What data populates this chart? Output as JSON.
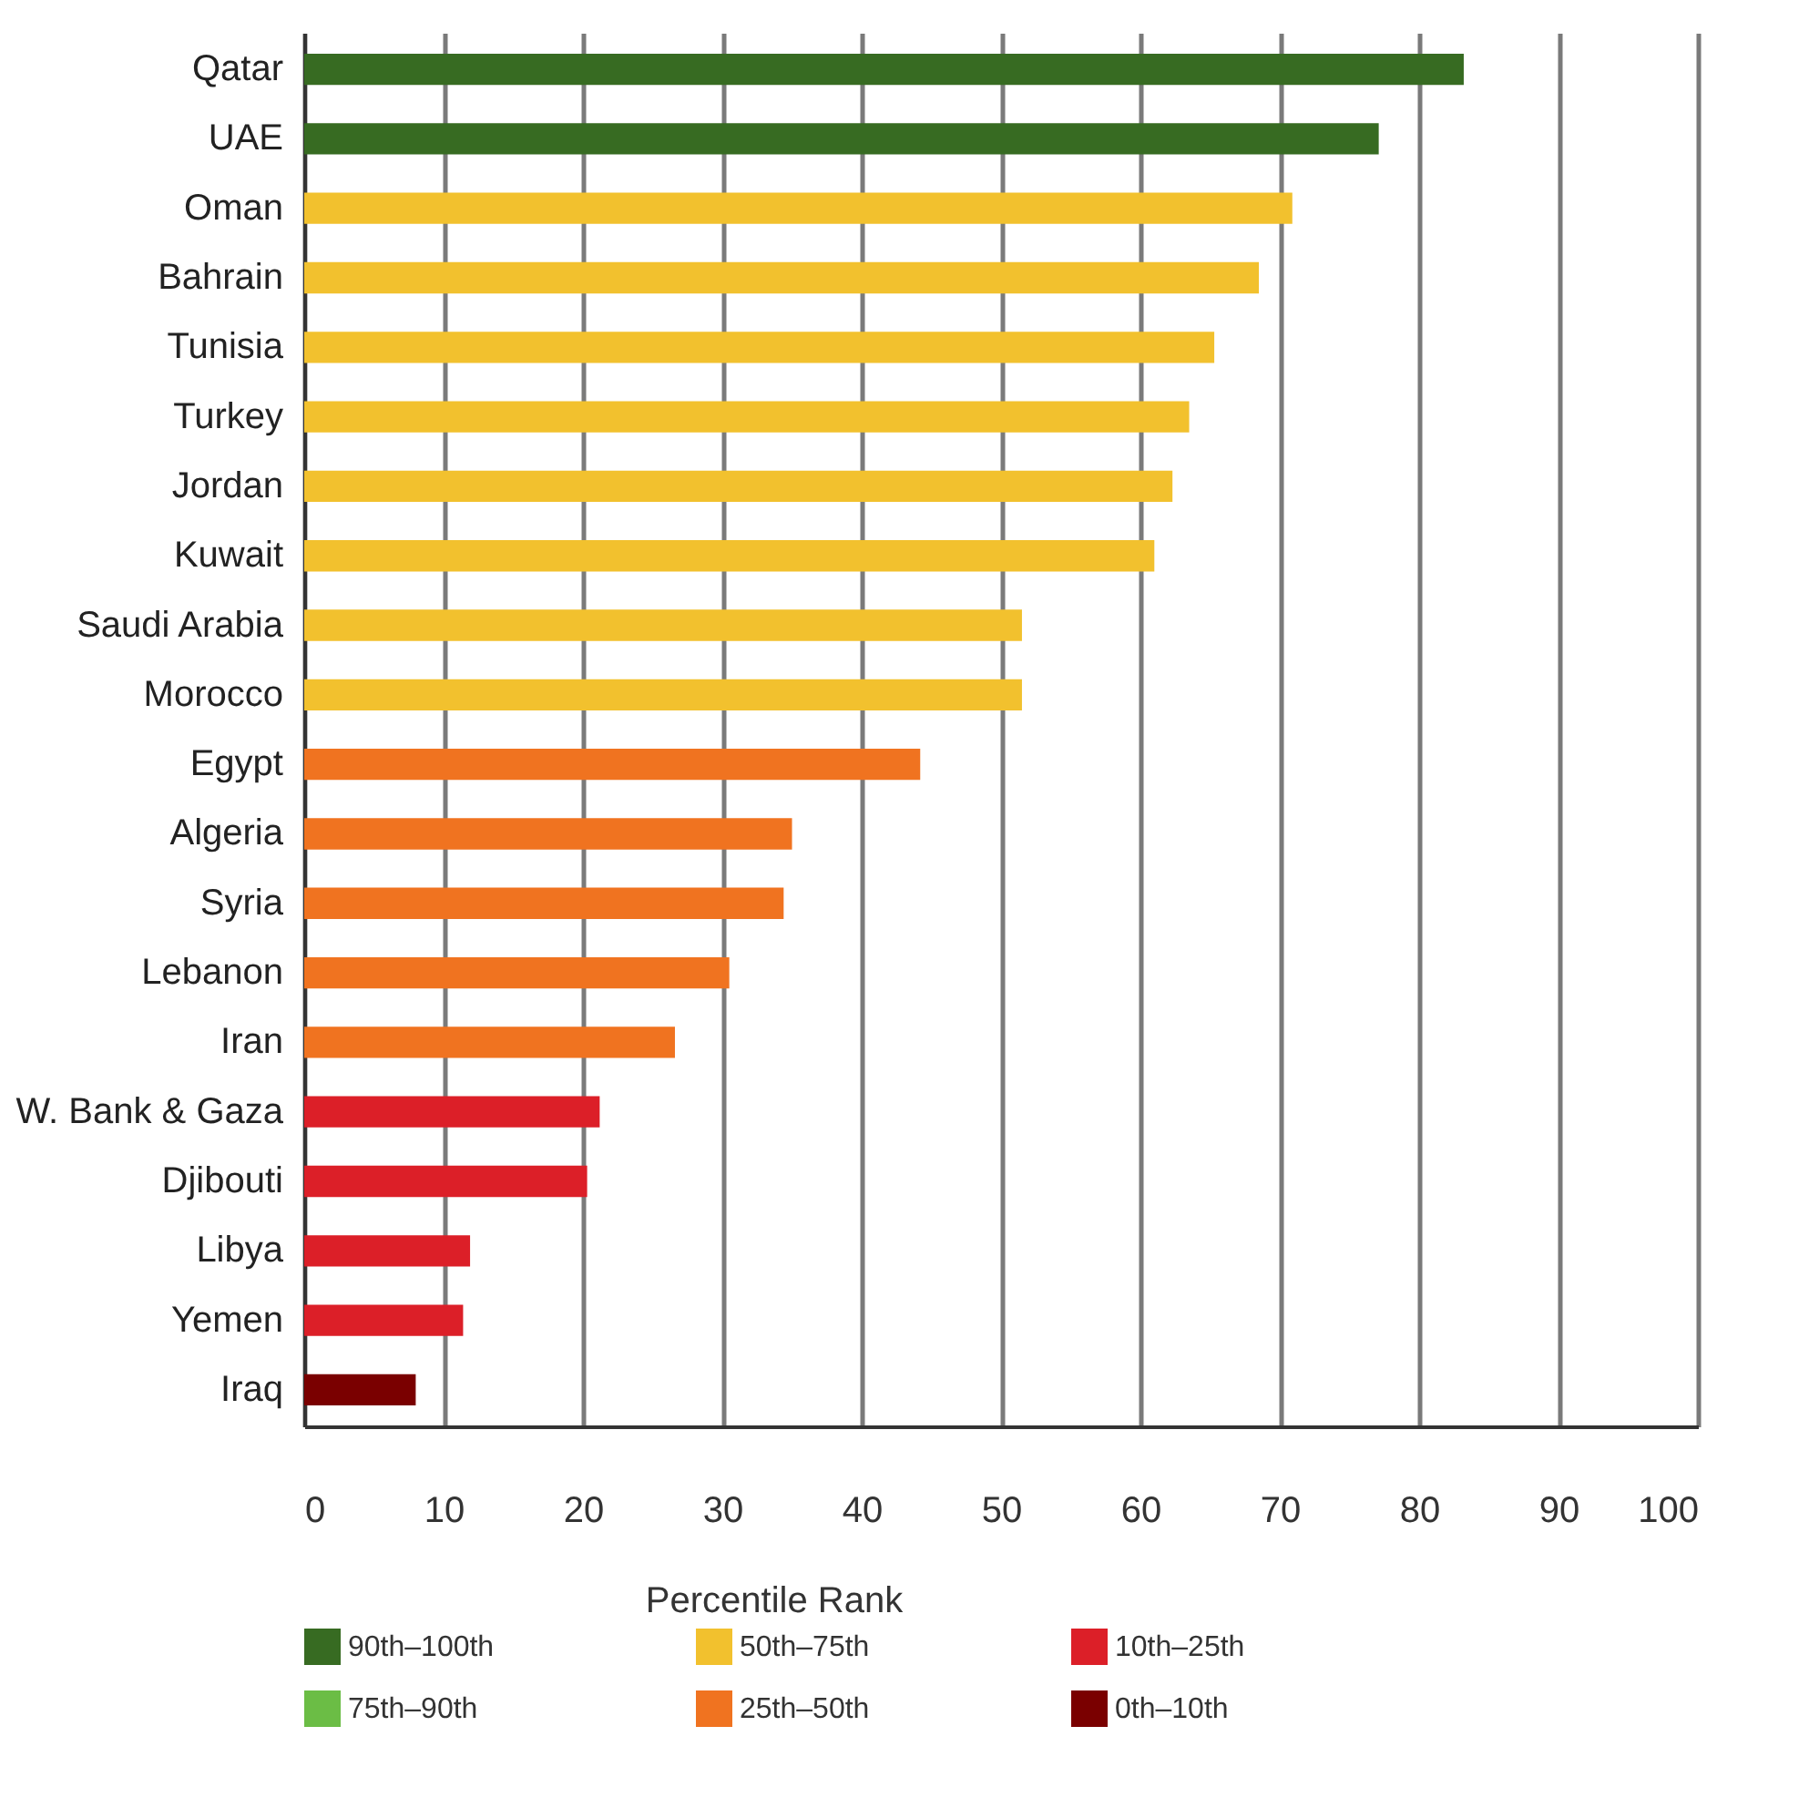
{
  "chart_data": {
    "type": "bar",
    "orientation": "horizontal",
    "categories": [
      "Qatar",
      "UAE",
      "Oman",
      "Bahrain",
      "Tunisia",
      "Turkey",
      "Jordan",
      "Kuwait",
      "Saudi Arabia",
      "Morocco",
      "Egypt",
      "Algeria",
      "Syria",
      "Lebanon",
      "Iran",
      "W. Bank & Gaza",
      "Djibouti",
      "Libya",
      "Yemen",
      "Iraq"
    ],
    "series": [
      {
        "name": "90th–100th",
        "color": "#376b22",
        "values": [
          83.2,
          77.1,
          null,
          null,
          null,
          null,
          null,
          null,
          null,
          null,
          null,
          null,
          null,
          null,
          null,
          null,
          null,
          null,
          null,
          null
        ]
      },
      {
        "name": "50th–75th",
        "color": "#f2c12e",
        "values": [
          null,
          null,
          70.9,
          68.5,
          65.3,
          63.5,
          62.3,
          61.0,
          51.5,
          51.5,
          null,
          null,
          null,
          null,
          null,
          null,
          null,
          null,
          null,
          null
        ]
      },
      {
        "name": "10th–25th",
        "color": "#dc1f28",
        "values": [
          null,
          null,
          null,
          null,
          null,
          null,
          null,
          null,
          null,
          null,
          null,
          null,
          null,
          null,
          null,
          21.2,
          20.3,
          11.9,
          11.4,
          null
        ]
      },
      {
        "name": "75th–90th",
        "color": "#6bbd45",
        "values": [
          null,
          null,
          null,
          null,
          null,
          null,
          null,
          null,
          null,
          null,
          null,
          null,
          null,
          null,
          null,
          null,
          null,
          null,
          null,
          null
        ]
      },
      {
        "name": "25th–50th",
        "color": "#f07320",
        "values": [
          null,
          null,
          null,
          null,
          null,
          null,
          null,
          null,
          null,
          null,
          44.2,
          35.0,
          34.4,
          30.5,
          26.6,
          null,
          null,
          null,
          null,
          null
        ]
      },
      {
        "name": "0th–10th",
        "color": "#7a0000",
        "values": [
          null,
          null,
          null,
          null,
          null,
          null,
          null,
          null,
          null,
          null,
          null,
          null,
          null,
          null,
          null,
          null,
          null,
          null,
          null,
          8.0
        ]
      }
    ],
    "xlim": [
      0,
      100
    ],
    "xticks": [
      0,
      10,
      20,
      30,
      40,
      50,
      60,
      70,
      80,
      90,
      100
    ],
    "grid": "x",
    "legend": "bottom",
    "legend_title": "Percentile Rank"
  }
}
